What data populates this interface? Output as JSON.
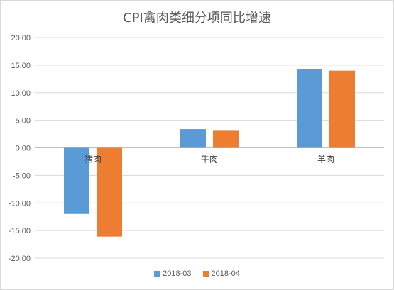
{
  "chart_data": {
    "type": "bar",
    "title": "CPI禽肉类细分项同比增速",
    "categories": [
      "猪肉",
      "牛肉",
      "羊肉"
    ],
    "series": [
      {
        "name": "2018-03",
        "values": [
          -12.0,
          3.4,
          14.3
        ],
        "color": "#5b9bd5"
      },
      {
        "name": "2018-04",
        "values": [
          -16.1,
          3.1,
          14.0
        ],
        "color": "#ed7d31"
      }
    ],
    "xlabel": "",
    "ylabel": "",
    "ylim": [
      -20,
      20
    ],
    "yticks": [
      "20.00",
      "15.00",
      "10.00",
      "5.00",
      "0.00",
      "-5.00",
      "-10.00",
      "-15.00",
      "-20.00"
    ],
    "grid": true,
    "legend_position": "bottom"
  }
}
